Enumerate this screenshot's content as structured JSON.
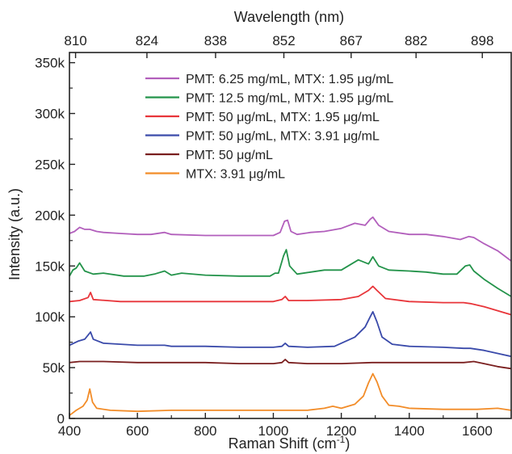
{
  "chart_data": {
    "type": "line",
    "xlabel": "Raman Shift (cm",
    "xlabel_sup": "-1",
    "xlabel_close": ")",
    "ylabel": "Intensity (a.u.)",
    "top_xlabel": "Wavelength (nm)",
    "xlim": [
      400,
      1700
    ],
    "ylim": [
      0,
      360000
    ],
    "grid": false,
    "legend_position": "top-center",
    "x_ticks": [
      {
        "value": 400,
        "label": "400"
      },
      {
        "value": 600,
        "label": "600"
      },
      {
        "value": 800,
        "label": "800"
      },
      {
        "value": 1000,
        "label": "1000"
      },
      {
        "value": 1200,
        "label": "1200"
      },
      {
        "value": 1400,
        "label": "1400"
      },
      {
        "value": 1600,
        "label": "1600"
      }
    ],
    "top_ticks": [
      {
        "value": 418,
        "label": "810"
      },
      {
        "value": 628,
        "label": "824"
      },
      {
        "value": 830,
        "label": "838"
      },
      {
        "value": 1031,
        "label": "852"
      },
      {
        "value": 1229,
        "label": "867"
      },
      {
        "value": 1420,
        "label": "882"
      },
      {
        "value": 1615,
        "label": "898"
      }
    ],
    "y_ticks": [
      {
        "value": 0,
        "label": "0"
      },
      {
        "value": 50000,
        "label": "50k"
      },
      {
        "value": 100000,
        "label": "100k"
      },
      {
        "value": 150000,
        "label": "150k"
      },
      {
        "value": 200000,
        "label": "200k"
      },
      {
        "value": 250000,
        "label": "250k"
      },
      {
        "value": 300000,
        "label": "300k"
      },
      {
        "value": 350000,
        "label": "350k"
      }
    ],
    "series": [
      {
        "name": "PMT: 6.25 mg/mL,  MTX: 1.95 μg/mL",
        "color": "#b25fbc",
        "points": [
          [
            400,
            182000
          ],
          [
            415,
            184000
          ],
          [
            430,
            188000
          ],
          [
            445,
            186000
          ],
          [
            460,
            186000
          ],
          [
            480,
            184000
          ],
          [
            500,
            183000
          ],
          [
            550,
            182000
          ],
          [
            600,
            181000
          ],
          [
            640,
            181000
          ],
          [
            680,
            183000
          ],
          [
            700,
            181000
          ],
          [
            800,
            180000
          ],
          [
            900,
            180000
          ],
          [
            1000,
            180000
          ],
          [
            1020,
            183000
          ],
          [
            1033,
            194000
          ],
          [
            1042,
            195000
          ],
          [
            1052,
            184000
          ],
          [
            1070,
            181000
          ],
          [
            1110,
            183000
          ],
          [
            1150,
            184000
          ],
          [
            1200,
            187000
          ],
          [
            1240,
            192000
          ],
          [
            1270,
            190000
          ],
          [
            1285,
            196000
          ],
          [
            1293,
            198000
          ],
          [
            1310,
            190000
          ],
          [
            1340,
            184000
          ],
          [
            1400,
            181000
          ],
          [
            1450,
            181000
          ],
          [
            1500,
            179000
          ],
          [
            1550,
            176000
          ],
          [
            1575,
            179000
          ],
          [
            1590,
            178000
          ],
          [
            1620,
            172000
          ],
          [
            1660,
            165000
          ],
          [
            1700,
            155000
          ]
        ]
      },
      {
        "name": "PMT: 12.5 mg/mL,  MTX: 1.95 μg/mL",
        "color": "#23934a",
        "points": [
          [
            400,
            140000
          ],
          [
            410,
            146000
          ],
          [
            420,
            148000
          ],
          [
            430,
            153000
          ],
          [
            445,
            145000
          ],
          [
            470,
            142000
          ],
          [
            500,
            143000
          ],
          [
            560,
            140000
          ],
          [
            620,
            140000
          ],
          [
            650,
            142000
          ],
          [
            680,
            145000
          ],
          [
            700,
            141000
          ],
          [
            730,
            143000
          ],
          [
            800,
            141000
          ],
          [
            900,
            140000
          ],
          [
            990,
            140000
          ],
          [
            1005,
            143000
          ],
          [
            1015,
            143000
          ],
          [
            1030,
            160000
          ],
          [
            1038,
            166000
          ],
          [
            1048,
            150000
          ],
          [
            1070,
            142000
          ],
          [
            1110,
            144000
          ],
          [
            1150,
            146000
          ],
          [
            1200,
            146000
          ],
          [
            1250,
            156000
          ],
          [
            1280,
            152000
          ],
          [
            1293,
            159000
          ],
          [
            1310,
            150000
          ],
          [
            1340,
            146000
          ],
          [
            1400,
            145000
          ],
          [
            1450,
            144000
          ],
          [
            1500,
            142000
          ],
          [
            1540,
            142000
          ],
          [
            1565,
            150000
          ],
          [
            1578,
            151000
          ],
          [
            1590,
            145000
          ],
          [
            1620,
            137000
          ],
          [
            1660,
            128000
          ],
          [
            1700,
            120000
          ]
        ]
      },
      {
        "name": "PMT:     50 μg/mL,  MTX: 1.95 μg/mL",
        "color": "#e8353a",
        "points": [
          [
            400,
            115000
          ],
          [
            430,
            116000
          ],
          [
            455,
            119000
          ],
          [
            462,
            124000
          ],
          [
            470,
            117000
          ],
          [
            550,
            115000
          ],
          [
            700,
            115000
          ],
          [
            900,
            115000
          ],
          [
            1000,
            115000
          ],
          [
            1025,
            117000
          ],
          [
            1035,
            120000
          ],
          [
            1045,
            116000
          ],
          [
            1100,
            116000
          ],
          [
            1200,
            117000
          ],
          [
            1250,
            120000
          ],
          [
            1280,
            126000
          ],
          [
            1293,
            130000
          ],
          [
            1305,
            126000
          ],
          [
            1330,
            118000
          ],
          [
            1400,
            115000
          ],
          [
            1500,
            114000
          ],
          [
            1560,
            114000
          ],
          [
            1580,
            113000
          ],
          [
            1620,
            110000
          ],
          [
            1660,
            106000
          ],
          [
            1700,
            102000
          ]
        ]
      },
      {
        "name": "PMT:     50 μg/mL,  MTX: 3.91 μg/mL",
        "color": "#3a4aaa",
        "points": [
          [
            400,
            72000
          ],
          [
            425,
            76000
          ],
          [
            445,
            78000
          ],
          [
            455,
            82000
          ],
          [
            462,
            85000
          ],
          [
            470,
            78000
          ],
          [
            500,
            74000
          ],
          [
            600,
            72000
          ],
          [
            680,
            72000
          ],
          [
            700,
            71000
          ],
          [
            800,
            71000
          ],
          [
            900,
            70000
          ],
          [
            1000,
            70000
          ],
          [
            1025,
            71000
          ],
          [
            1035,
            74000
          ],
          [
            1045,
            71000
          ],
          [
            1100,
            70000
          ],
          [
            1180,
            71000
          ],
          [
            1240,
            80000
          ],
          [
            1270,
            90000
          ],
          [
            1285,
            100000
          ],
          [
            1293,
            105000
          ],
          [
            1305,
            95000
          ],
          [
            1320,
            80000
          ],
          [
            1350,
            73000
          ],
          [
            1400,
            71000
          ],
          [
            1500,
            70000
          ],
          [
            1560,
            69000
          ],
          [
            1580,
            69000
          ],
          [
            1620,
            67000
          ],
          [
            1660,
            64000
          ],
          [
            1700,
            61000
          ]
        ]
      },
      {
        "name": "PMT:     50 μg/mL",
        "color": "#7a1f1f",
        "points": [
          [
            400,
            55000
          ],
          [
            430,
            56000
          ],
          [
            500,
            56000
          ],
          [
            600,
            55000
          ],
          [
            700,
            55000
          ],
          [
            800,
            55000
          ],
          [
            900,
            54000
          ],
          [
            1000,
            54000
          ],
          [
            1025,
            55000
          ],
          [
            1035,
            58000
          ],
          [
            1045,
            55000
          ],
          [
            1100,
            54000
          ],
          [
            1200,
            54000
          ],
          [
            1290,
            55000
          ],
          [
            1400,
            55000
          ],
          [
            1500,
            55000
          ],
          [
            1560,
            55000
          ],
          [
            1590,
            56000
          ],
          [
            1620,
            54000
          ],
          [
            1660,
            51000
          ],
          [
            1700,
            49000
          ]
        ]
      },
      {
        "name": "MTX:  3.91 μg/mL",
        "color": "#f28c28",
        "points": [
          [
            400,
            3000
          ],
          [
            420,
            8000
          ],
          [
            440,
            12000
          ],
          [
            452,
            18000
          ],
          [
            460,
            29000
          ],
          [
            468,
            16000
          ],
          [
            480,
            10000
          ],
          [
            520,
            8000
          ],
          [
            600,
            7000
          ],
          [
            700,
            8000
          ],
          [
            800,
            8000
          ],
          [
            900,
            8000
          ],
          [
            1000,
            8000
          ],
          [
            1100,
            8000
          ],
          [
            1150,
            10000
          ],
          [
            1175,
            12000
          ],
          [
            1200,
            10000
          ],
          [
            1240,
            14000
          ],
          [
            1265,
            22000
          ],
          [
            1280,
            35000
          ],
          [
            1293,
            44000
          ],
          [
            1305,
            36000
          ],
          [
            1320,
            22000
          ],
          [
            1340,
            13000
          ],
          [
            1370,
            12000
          ],
          [
            1400,
            10000
          ],
          [
            1500,
            9000
          ],
          [
            1600,
            9000
          ],
          [
            1660,
            10000
          ],
          [
            1700,
            8000
          ]
        ]
      }
    ]
  }
}
